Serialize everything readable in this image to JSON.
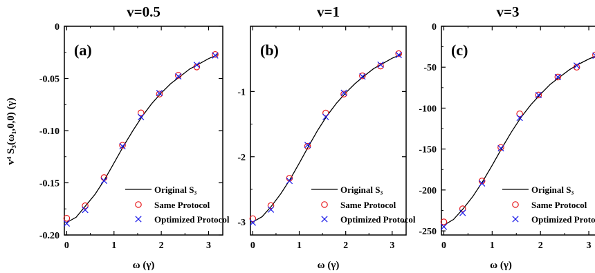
{
  "figure": {
    "ylabel": "v⁴ S₃(ω₁,0,0) (γ)",
    "xlabel": "ω (γ)",
    "legend": [
      "Original S₃",
      "Same Protocol",
      "Optimized Protocol"
    ]
  },
  "chart_data": [
    {
      "type": "line",
      "title": "v=0.5",
      "panel_label": "(a)",
      "xlabel": "ω (γ)",
      "ylabel": "v⁴ S₃(ω₁,0,0) (γ)",
      "xlim": [
        -0.05,
        3.3
      ],
      "ylim": [
        -0.2,
        0
      ],
      "xticks": [
        0,
        1,
        2,
        3
      ],
      "xtick_labels": [
        "0",
        "1",
        "2",
        "3"
      ],
      "yticks": [
        0,
        -0.05,
        -0.1,
        -0.15,
        -0.2
      ],
      "ytick_labels": [
        "0",
        "-0.05",
        "-0.10",
        "-0.15",
        "-0.20"
      ],
      "legend_placement": "bottom-right",
      "curve": {
        "name": "Original S₃",
        "x": [
          0,
          0.2,
          0.4,
          0.6,
          0.8,
          1.0,
          1.2,
          1.4,
          1.6,
          1.8,
          2.0,
          2.2,
          2.4,
          2.6,
          2.8,
          3.0,
          3.2
        ],
        "y": [
          -0.188,
          -0.183,
          -0.172,
          -0.161,
          -0.147,
          -0.131,
          -0.115,
          -0.1,
          -0.086,
          -0.074,
          -0.064,
          -0.055,
          -0.048,
          -0.041,
          -0.036,
          -0.031,
          -0.027
        ]
      },
      "same_protocol": {
        "name": "Same Protocol",
        "x": [
          0,
          0.39,
          0.79,
          1.18,
          1.57,
          1.96,
          2.36,
          2.75,
          3.14
        ],
        "y": [
          -0.184,
          -0.172,
          -0.145,
          -0.114,
          -0.083,
          -0.065,
          -0.047,
          -0.039,
          -0.027
        ]
      },
      "optimized_protocol": {
        "name": "Optimized Protocol",
        "x": [
          0,
          0.39,
          0.79,
          1.18,
          1.57,
          1.96,
          2.36,
          2.75,
          3.14
        ],
        "y": [
          -0.189,
          -0.176,
          -0.148,
          -0.115,
          -0.087,
          -0.064,
          -0.048,
          -0.037,
          -0.028
        ]
      }
    },
    {
      "type": "line",
      "title": "v=1",
      "panel_label": "(b)",
      "xlabel": "ω (γ)",
      "xlim": [
        -0.05,
        3.3
      ],
      "ylim": [
        -3.2,
        0
      ],
      "xticks": [
        0,
        1,
        2,
        3
      ],
      "xtick_labels": [
        "0",
        "1",
        "2",
        "3"
      ],
      "yticks": [
        -1,
        -2,
        -3
      ],
      "ytick_labels": [
        "-1",
        "-2",
        "-3"
      ],
      "legend_placement": "bottom-right",
      "curve": {
        "name": "Original S₃",
        "x": [
          0,
          0.2,
          0.4,
          0.6,
          0.8,
          1.0,
          1.2,
          1.4,
          1.6,
          1.8,
          2.0,
          2.2,
          2.4,
          2.6,
          2.8,
          3.0,
          3.2
        ],
        "y": [
          -3.0,
          -2.92,
          -2.76,
          -2.57,
          -2.35,
          -2.1,
          -1.84,
          -1.59,
          -1.37,
          -1.18,
          -1.02,
          -0.88,
          -0.76,
          -0.65,
          -0.57,
          -0.49,
          -0.43
        ]
      },
      "same_protocol": {
        "name": "Same Protocol",
        "x": [
          0,
          0.39,
          0.79,
          1.18,
          1.57,
          1.96,
          2.36,
          2.75,
          3.14
        ],
        "y": [
          -2.95,
          -2.75,
          -2.33,
          -1.84,
          -1.33,
          -1.04,
          -0.76,
          -0.61,
          -0.42
        ]
      },
      "optimized_protocol": {
        "name": "Optimized Protocol",
        "x": [
          0,
          0.39,
          0.79,
          1.18,
          1.57,
          1.96,
          2.36,
          2.75,
          3.14
        ],
        "y": [
          -3.01,
          -2.81,
          -2.37,
          -1.82,
          -1.39,
          -1.02,
          -0.77,
          -0.59,
          -0.44
        ]
      }
    },
    {
      "type": "line",
      "title": "v=3",
      "panel_label": "(c)",
      "xlabel": "ω (γ)",
      "xlim": [
        -0.05,
        3.3
      ],
      "ylim": [
        -255,
        0
      ],
      "xticks": [
        0,
        1,
        2,
        3
      ],
      "xtick_labels": [
        "0",
        "1",
        "2",
        "3"
      ],
      "yticks": [
        0,
        -50,
        -100,
        -150,
        -200,
        -250
      ],
      "ytick_labels": [
        "0",
        "-50",
        "-100",
        "-150",
        "-200",
        "-250"
      ],
      "legend_placement": "bottom-right",
      "curve": {
        "name": "Original S₃",
        "x": [
          0,
          0.2,
          0.4,
          0.6,
          0.8,
          1.0,
          1.2,
          1.4,
          1.6,
          1.8,
          2.0,
          2.2,
          2.4,
          2.6,
          2.8,
          3.0,
          3.2
        ],
        "y": [
          -243,
          -236,
          -223,
          -208,
          -190,
          -170,
          -149,
          -129,
          -111,
          -96,
          -83,
          -71,
          -62,
          -53,
          -46,
          -40,
          -35
        ]
      },
      "same_protocol": {
        "name": "Same Protocol",
        "x": [
          0,
          0.39,
          0.79,
          1.18,
          1.57,
          1.96,
          2.36,
          2.75,
          3.14
        ],
        "y": [
          -239,
          -223,
          -189,
          -148,
          -107,
          -84,
          -62,
          -50,
          -35
        ]
      },
      "optimized_protocol": {
        "name": "Optimized Protocol",
        "x": [
          0,
          0.39,
          0.79,
          1.18,
          1.57,
          1.96,
          2.36,
          2.75,
          3.14
        ],
        "y": [
          -245,
          -228,
          -192,
          -149,
          -112,
          -84,
          -62,
          -48,
          -36
        ]
      }
    }
  ]
}
